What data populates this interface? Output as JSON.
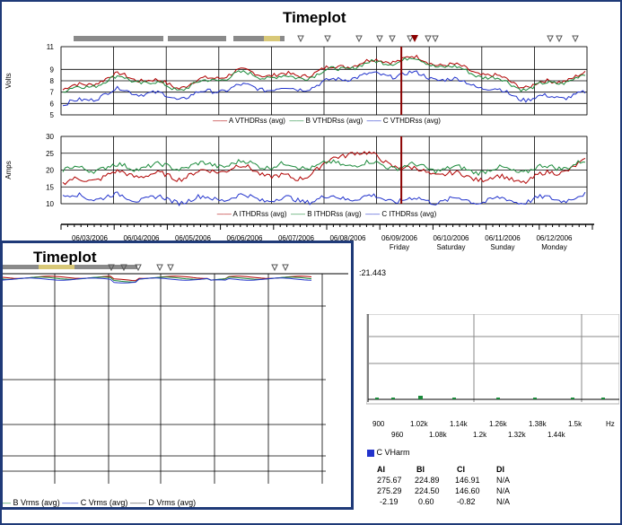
{
  "back_window": {
    "title": "Timeplot",
    "volts_chart": {
      "ylabel": "Volts",
      "yticks": [
        "11",
        "9",
        "8",
        "7",
        "6",
        "5"
      ],
      "legend": [
        "A VTHDRss (avg)",
        "B VTHDRss (avg)",
        "C VTHDRss (avg)"
      ]
    },
    "amps_chart": {
      "ylabel": "Amps",
      "yticks": [
        "30",
        "25",
        "20",
        "15",
        "10"
      ],
      "legend": [
        "A ITHDRss (avg)",
        "B ITHDRss (avg)",
        "C ITHDRss (avg)"
      ]
    },
    "date_axis": [
      {
        "date": "06/03/2006",
        "day": ""
      },
      {
        "date": "06/04/2006",
        "day": ""
      },
      {
        "date": "06/05/2006",
        "day": ""
      },
      {
        "date": "06/06/2006",
        "day": ""
      },
      {
        "date": "06/07/2006",
        "day": ""
      },
      {
        "date": "06/08/2006",
        "day": ""
      },
      {
        "date": "06/09/2006",
        "day": "Friday"
      },
      {
        "date": "06/10/2006",
        "day": "Saturday"
      },
      {
        "date": "06/11/2006",
        "day": "Sunday"
      },
      {
        "date": "06/12/2006",
        "day": "Monday"
      }
    ],
    "timestamp_fragment": ":21.443",
    "spectrum": {
      "xunit": "Hz",
      "ticks_top": [
        "900",
        "1.02k",
        "1.14k",
        "1.26k",
        "1.38k",
        "1.5k"
      ],
      "ticks_bottom": [
        "960",
        "1.08k",
        "1.2k",
        "1.32k",
        "1.44k"
      ],
      "legend": "C VHarm"
    },
    "harmonics_table": {
      "headers": [
        "AI",
        "BI",
        "CI",
        "DI"
      ],
      "rows": [
        [
          "275.67",
          "224.89",
          "146.91",
          "N/A"
        ],
        [
          "275.29",
          "224.50",
          "146.60",
          "N/A"
        ],
        [
          "-2.19",
          "0.60",
          "-0.82",
          "N/A"
        ]
      ]
    }
  },
  "front_window": {
    "title": "Timeplot",
    "legend": [
      "B Vrms (avg)",
      "C Vrms (avg)",
      "D Vrms (avg)"
    ]
  },
  "colors": {
    "phase_a": "#b00000",
    "phase_b": "#1a8a3a",
    "phase_c": "#2233cc",
    "frame": "#1f3a78",
    "cursor": "#8b0000"
  },
  "chart_data": [
    {
      "type": "line",
      "ylabel": "Volts",
      "ylim": [
        5,
        11
      ],
      "x": [
        "06/03/2006",
        "06/04/2006",
        "06/05/2006",
        "06/06/2006",
        "06/07/2006",
        "06/08/2006",
        "06/09/2006",
        "06/10/2006",
        "06/11/2006",
        "06/12/2006"
      ],
      "series": [
        {
          "name": "A VTHDRss (avg)",
          "values": [
            7.2,
            8.5,
            7.5,
            8.8,
            8.4,
            9.5,
            10.0,
            9.0,
            7.5,
            8.5
          ]
        },
        {
          "name": "B VTHDRss (avg)",
          "values": [
            7.0,
            8.3,
            7.3,
            8.6,
            8.2,
            9.3,
            9.9,
            8.8,
            7.3,
            8.4
          ]
        },
        {
          "name": "C VTHDRss (avg)",
          "values": [
            5.8,
            7.2,
            6.5,
            7.5,
            7.2,
            8.4,
            8.6,
            7.8,
            6.4,
            6.8
          ]
        }
      ]
    },
    {
      "type": "line",
      "ylabel": "Amps",
      "ylim": [
        10,
        30
      ],
      "x": [
        "06/03/2006",
        "06/04/2006",
        "06/05/2006",
        "06/06/2006",
        "06/07/2006",
        "06/08/2006",
        "06/09/2006",
        "06/10/2006",
        "06/11/2006",
        "06/12/2006"
      ],
      "series": [
        {
          "name": "A ITHDRss (avg)",
          "values": [
            16,
            19,
            18,
            21,
            17,
            26,
            20,
            18,
            17,
            22
          ]
        },
        {
          "name": "B ITHDRss (avg)",
          "values": [
            20,
            21,
            21,
            22,
            21,
            22,
            21,
            20,
            20,
            22
          ]
        },
        {
          "name": "C ITHDRss (avg)",
          "values": [
            12,
            12,
            11,
            12,
            11,
            12,
            11,
            11,
            11,
            12
          ]
        }
      ]
    }
  ]
}
